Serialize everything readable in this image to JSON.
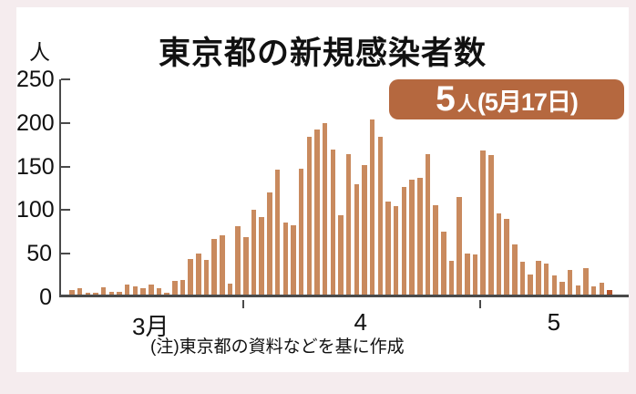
{
  "page": {
    "frame_bg": "#f5ecee",
    "card_bg": "#ffffff"
  },
  "title": "東京都の新規感染者数",
  "badge": {
    "value": "5",
    "unit": "人",
    "date": "(5月17日)",
    "bg": "#b5683f",
    "text_color": "#ffffff"
  },
  "y_axis": {
    "unit": "人",
    "ticks": [
      250,
      200,
      150,
      100,
      50,
      0
    ]
  },
  "note": "(注)東京都の資料などを基に作成",
  "chart_data": {
    "type": "bar",
    "title": "東京都の新規感染者数",
    "ylabel": "人",
    "ylim": [
      0,
      250
    ],
    "grid": false,
    "bar_color": "#c98a5e",
    "highlight_color": "#b4562d",
    "highlight_last": true,
    "annotation": "5人(5月17日)",
    "months": [
      {
        "label": "3月",
        "values": [
          5,
          7,
          2,
          2,
          8,
          3,
          3,
          12,
          9,
          7,
          11,
          7,
          2,
          16,
          17,
          41,
          47,
          40,
          64,
          68,
          13,
          78
        ]
      },
      {
        "label": "4",
        "values": [
          66,
          97,
          89,
          117,
          143,
          83,
          80,
          144,
          181,
          189,
          197,
          166,
          91,
          161,
          127,
          149,
          201,
          181,
          107,
          102,
          123,
          132,
          134,
          161,
          103,
          72,
          39,
          112,
          47,
          46
        ]
      },
      {
        "label": "5",
        "values": [
          165,
          160,
          93,
          87,
          58,
          38,
          23,
          39,
          36,
          22,
          15,
          28,
          10,
          30,
          9,
          14,
          5
        ]
      }
    ]
  }
}
